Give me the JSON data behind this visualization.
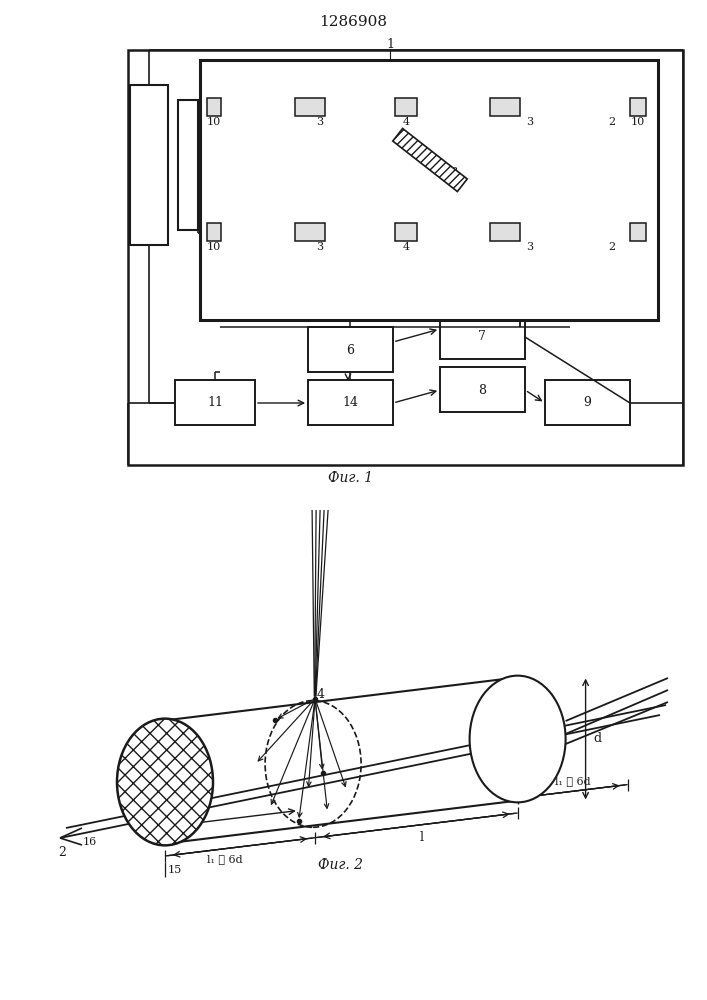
{
  "title": "1286908",
  "fig1_caption": "Фиг. 1",
  "fig2_caption": "Фиг. 2",
  "bg_color": "#ffffff",
  "line_color": "#1a1a1a"
}
